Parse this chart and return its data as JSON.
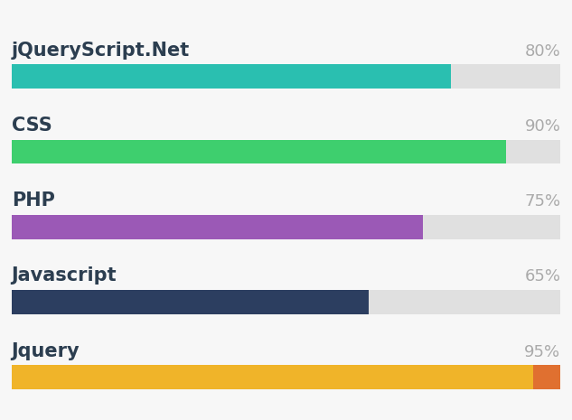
{
  "items": [
    {
      "label": "jQueryScript.Net",
      "value": 80,
      "bar_color": "#2abfb0",
      "track_color": "#e0e0e0"
    },
    {
      "label": "CSS",
      "value": 90,
      "bar_color": "#3ecf6e",
      "track_color": "#e0e0e0"
    },
    {
      "label": "PHP",
      "value": 75,
      "bar_color": "#9b59b6",
      "track_color": "#e0e0e0"
    },
    {
      "label": "Javascript",
      "value": 65,
      "bar_color": "#2c3e60",
      "track_color": "#e0e0e0"
    },
    {
      "label": "Jquery",
      "value": 95,
      "bar_color": "#f0b429",
      "track_color": "#e07030",
      "extra_segment": true
    }
  ],
  "background_color": "#f7f7f7",
  "label_color": "#2c3e50",
  "percent_color": "#aaaaaa",
  "label_fontsize": 15,
  "percent_fontsize": 13,
  "bar_height": 0.32,
  "xlim": [
    0,
    100
  ]
}
